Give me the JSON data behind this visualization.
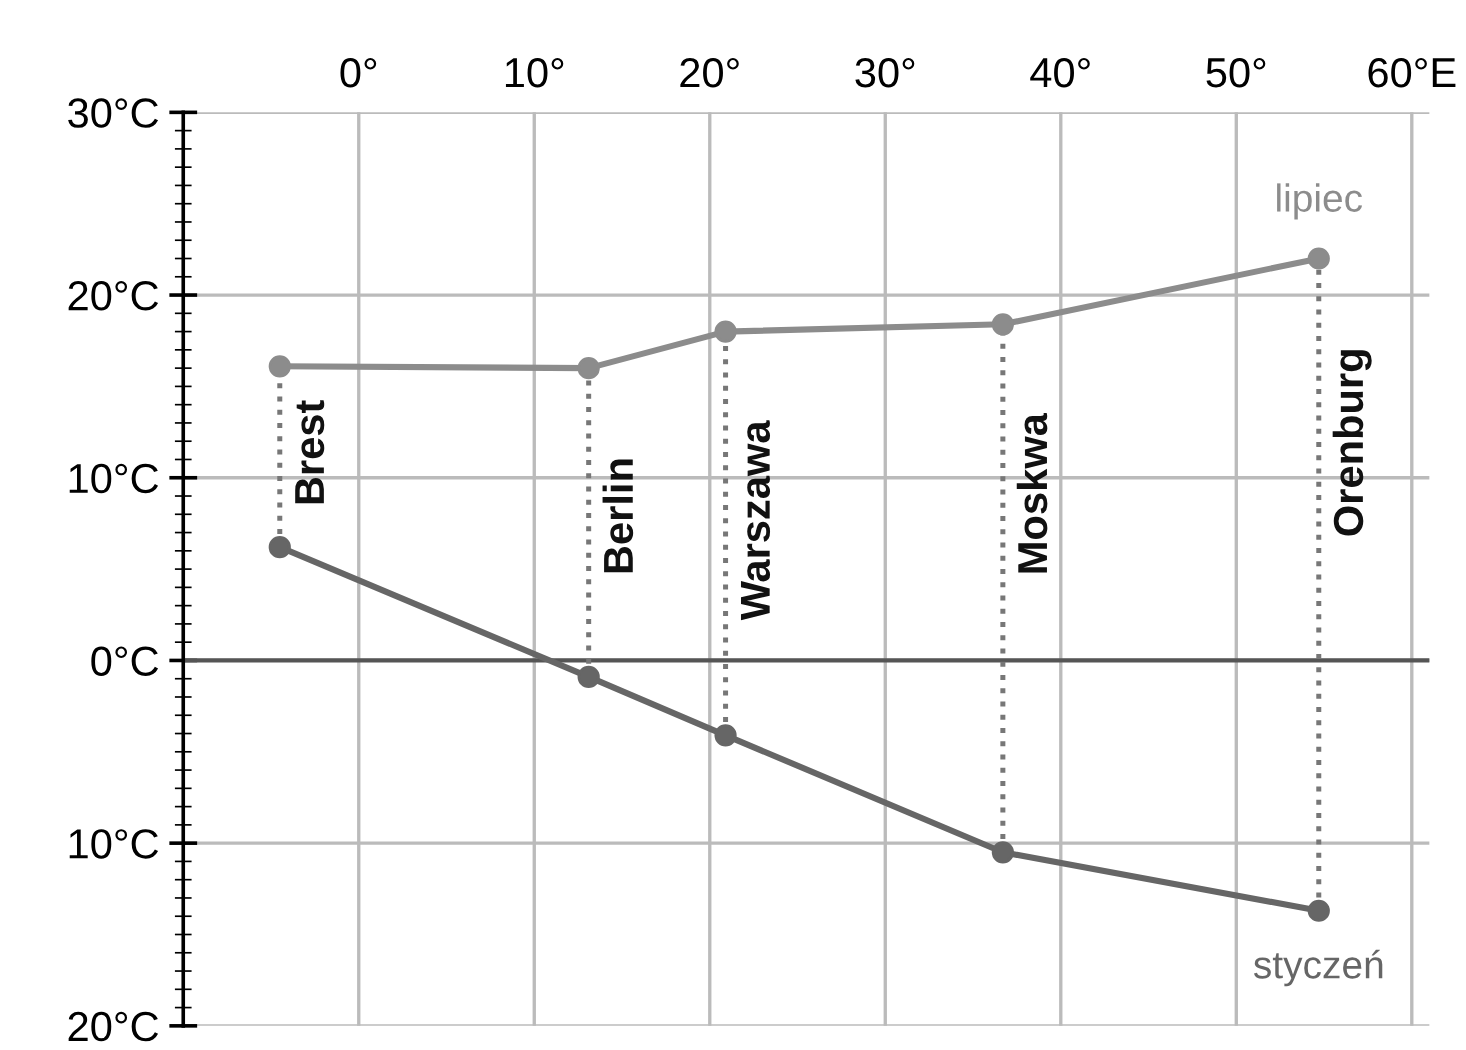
{
  "chart_data": {
    "type": "line",
    "x": [
      -4.5,
      13.1,
      20.9,
      36.7,
      54.7
    ],
    "series": [
      {
        "name": "lipiec",
        "color": "#8c8c8c",
        "values": [
          16.1,
          16.0,
          18.0,
          18.4,
          22.0
        ]
      },
      {
        "name": "styczeń",
        "color": "#666666",
        "values": [
          6.2,
          -0.9,
          -4.1,
          -10.5,
          -13.7
        ]
      }
    ],
    "annotations": [
      {
        "text": "Brest",
        "x": -4.5,
        "y": 16.1
      },
      {
        "text": "Berlin",
        "x": 13.1,
        "y": 16.0
      },
      {
        "text": "Warszawa",
        "x": 20.9,
        "y": 18.0
      },
      {
        "text": "Moskwa",
        "x": 36.7,
        "y": 18.4
      },
      {
        "text": "Orenburg",
        "x": 54.7,
        "y": 22.0
      }
    ],
    "xlim": [
      -10,
      61
    ],
    "ylim": [
      -20,
      30
    ],
    "xticks": [
      {
        "value": 0,
        "label": "0°"
      },
      {
        "value": 10,
        "label": "10°"
      },
      {
        "value": 20,
        "label": "20°"
      },
      {
        "value": 30,
        "label": "30°"
      },
      {
        "value": 40,
        "label": "40°"
      },
      {
        "value": 50,
        "label": "50°"
      },
      {
        "value": 60,
        "label": "60°E"
      }
    ],
    "yticks": [
      {
        "value": -20,
        "label": "20°C"
      },
      {
        "value": -10,
        "label": "10°C"
      },
      {
        "value": 0,
        "label": "0°C"
      },
      {
        "value": 10,
        "label": "10°C"
      },
      {
        "value": 20,
        "label": "20°C"
      },
      {
        "value": 30,
        "label": "30°C"
      }
    ],
    "ref_lines": [
      {
        "axis": "y",
        "value": 0,
        "color": "#555555"
      }
    ],
    "grid": true,
    "legend": false,
    "marker": "circle",
    "line_style": "solid"
  }
}
